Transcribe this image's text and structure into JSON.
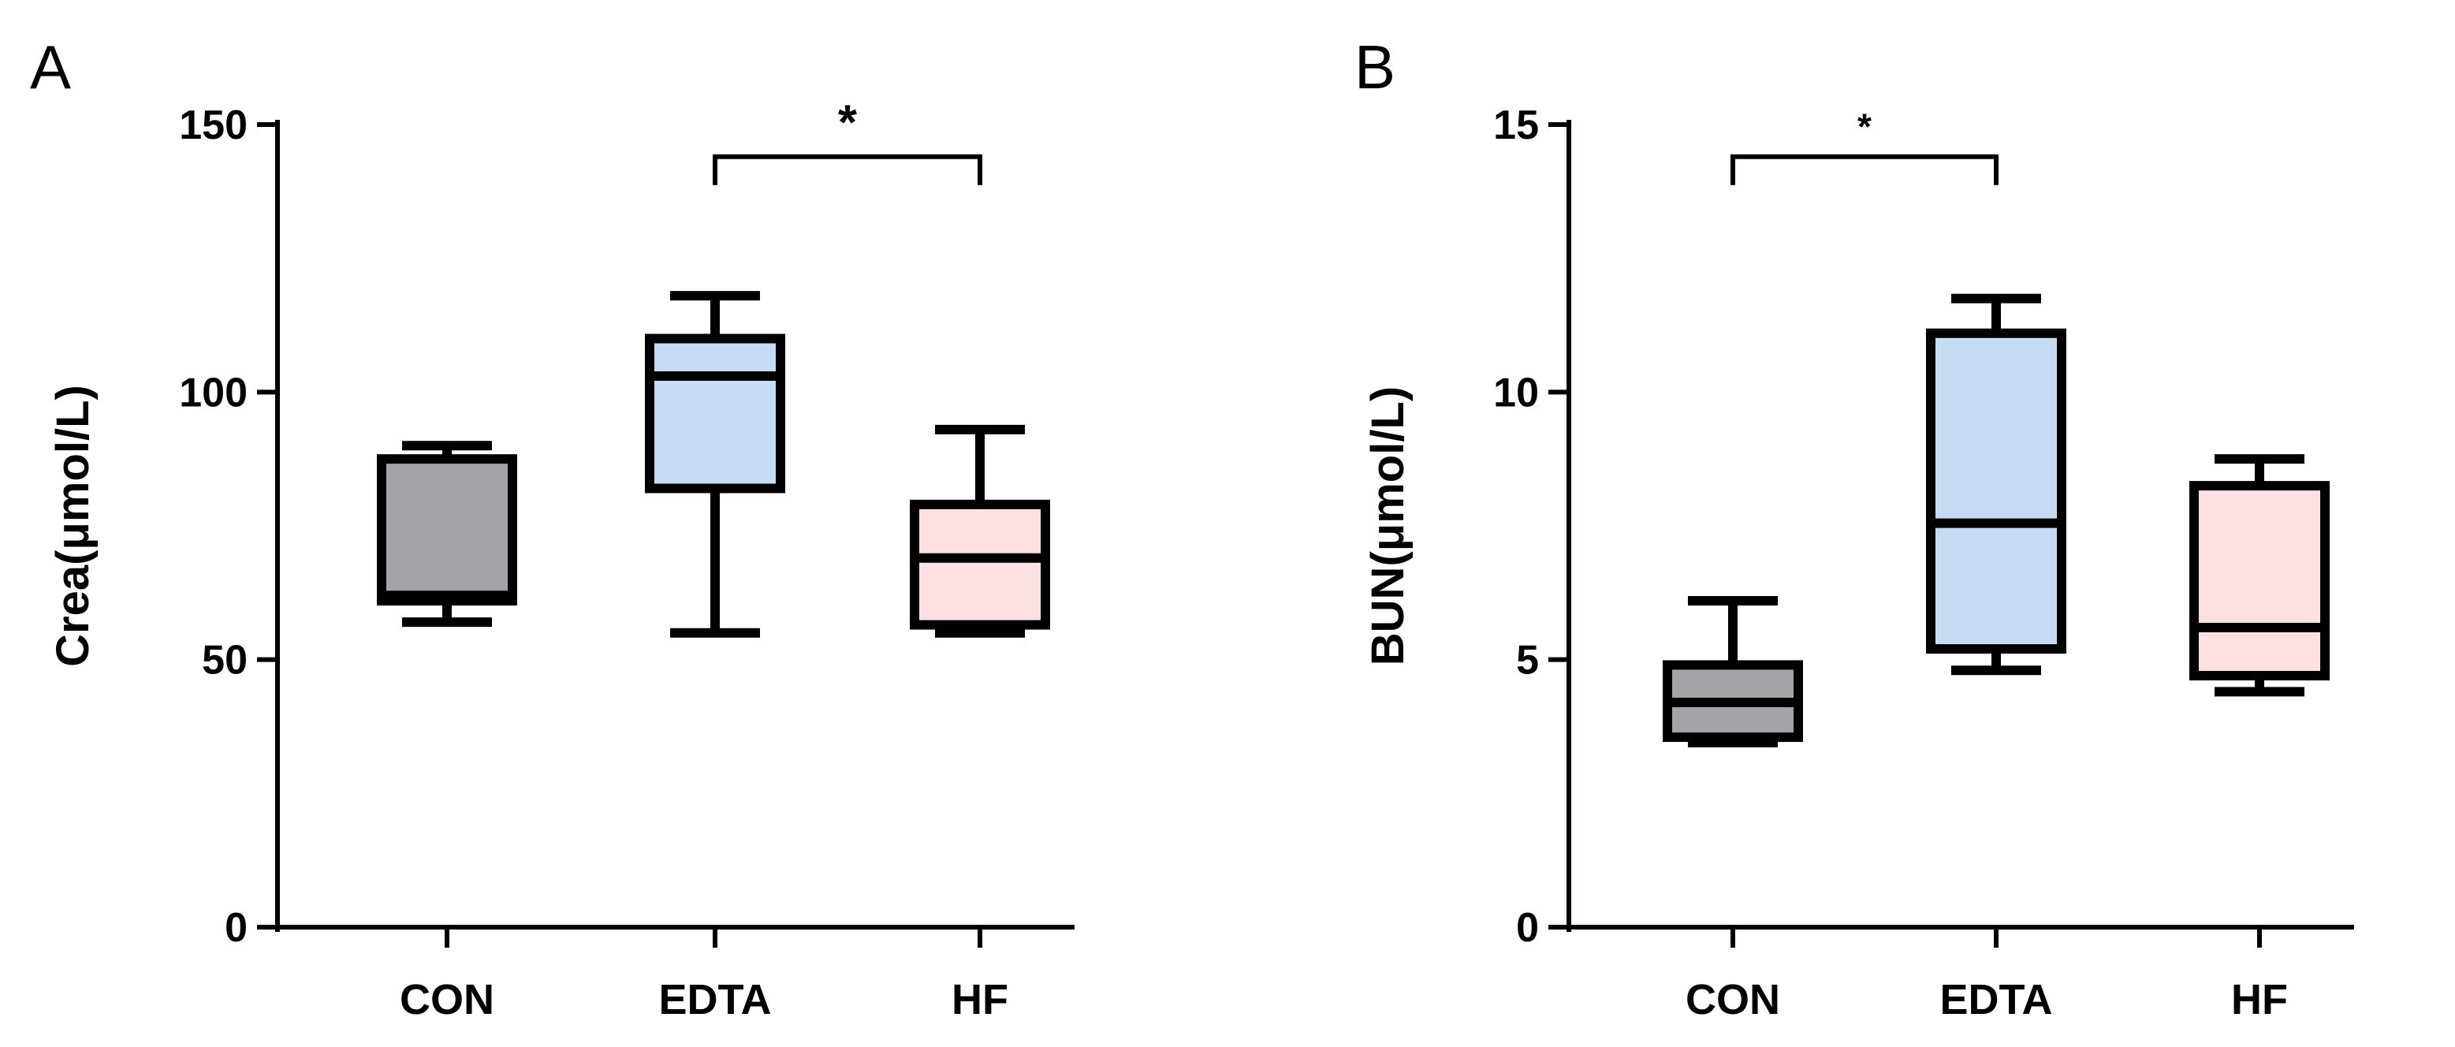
{
  "chart_data": [
    {
      "type": "box",
      "panel_label": "A",
      "title": "",
      "xlabel": "",
      "ylabel": "Crea(μmol/L)",
      "ylim": [
        0,
        150
      ],
      "yticks": [
        0,
        50,
        100,
        150
      ],
      "categories": [
        "CON",
        "EDTA",
        "HF"
      ],
      "boxes": [
        {
          "name": "CON",
          "min": 57,
          "q1": 61,
          "median": 62,
          "q3": 87.5,
          "max": 90,
          "color": "#a3a3a8"
        },
        {
          "name": "EDTA",
          "min": 55,
          "q1": 82,
          "median": 103,
          "q3": 110,
          "max": 118,
          "color": "#c6dcf5"
        },
        {
          "name": "HF",
          "min": 55,
          "q1": 56.5,
          "median": 69,
          "q3": 79,
          "max": 93,
          "color": "#fde0e1"
        }
      ],
      "significance": [
        {
          "from": "EDTA",
          "to": "HF",
          "label": "*",
          "y": 144
        }
      ]
    },
    {
      "type": "box",
      "panel_label": "B",
      "title": "",
      "xlabel": "",
      "ylabel": "BUN(μmol/L)",
      "ylim": [
        0,
        15
      ],
      "yticks": [
        0,
        5,
        10,
        15
      ],
      "categories": [
        "CON",
        "EDTA",
        "HF"
      ],
      "boxes": [
        {
          "name": "CON",
          "min": 3.45,
          "q1": 3.55,
          "median": 4.2,
          "q3": 4.9,
          "max": 6.1,
          "color": "#a3a3a8"
        },
        {
          "name": "EDTA",
          "min": 4.8,
          "q1": 5.2,
          "median": 7.55,
          "q3": 11.1,
          "max": 11.75,
          "color": "#c6dcf5"
        },
        {
          "name": "HF",
          "min": 4.4,
          "q1": 4.7,
          "median": 5.6,
          "q3": 8.25,
          "max": 8.75,
          "color": "#fde0e1"
        }
      ],
      "significance": [
        {
          "from": "CON",
          "to": "EDTA",
          "label": "*",
          "y": 14.4
        }
      ]
    }
  ]
}
